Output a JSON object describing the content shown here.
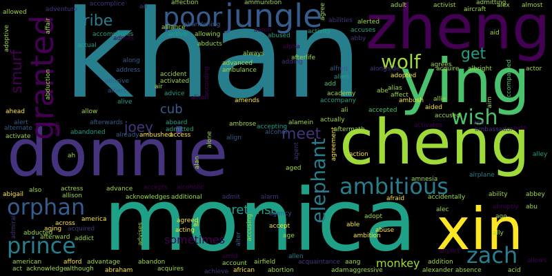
{
  "palette": {
    "background": "#000000",
    "purple_dark": "#440154",
    "purple": "#46337e",
    "indigo": "#365c8d",
    "blue": "#277f8e",
    "teal": "#1fa187",
    "green": "#4ac16d",
    "lime": "#a0da39",
    "yellow": "#fde725"
  },
  "words": [
    {
      "text": "khan"
    },
    {
      "text": "monica"
    },
    {
      "text": "donnie"
    },
    {
      "text": "zheng"
    },
    {
      "text": "cheng"
    },
    {
      "text": "ying"
    },
    {
      "text": "xin"
    },
    {
      "text": "jungle"
    },
    {
      "text": "poor"
    },
    {
      "text": "granted"
    },
    {
      "text": "wolf"
    },
    {
      "text": "get"
    },
    {
      "text": "tribe"
    },
    {
      "text": "wish"
    },
    {
      "text": "ambitious"
    },
    {
      "text": "orphan"
    },
    {
      "text": "prince"
    },
    {
      "text": "zach"
    },
    {
      "text": "elephant"
    },
    {
      "text": "meet"
    },
    {
      "text": "smurf"
    },
    {
      "text": "joey"
    },
    {
      "text": "cub"
    },
    {
      "text": "pretense"
    },
    {
      "text": "monkey"
    },
    {
      "text": "sometimes"
    },
    {
      "text": "accident"
    },
    {
      "text": "action"
    },
    {
      "text": "adopted"
    },
    {
      "text": "allen"
    },
    {
      "text": "aged"
    },
    {
      "text": "amends"
    },
    {
      "text": "ambush"
    },
    {
      "text": "actor"
    },
    {
      "text": "allowing"
    },
    {
      "text": "affection"
    },
    {
      "text": "alliance"
    },
    {
      "text": "abducts"
    },
    {
      "text": "ammunition"
    },
    {
      "text": "adopt"
    },
    {
      "text": "activist"
    },
    {
      "text": "adult"
    },
    {
      "text": "alerted"
    },
    {
      "text": "accuses"
    },
    {
      "text": "activity"
    },
    {
      "text": "afterlife"
    },
    {
      "text": "always"
    },
    {
      "text": "abused"
    },
    {
      "text": "abandoning"
    },
    {
      "text": "active"
    },
    {
      "text": "advanced"
    },
    {
      "text": "ambulance"
    },
    {
      "text": "activated"
    },
    {
      "text": "air"
    },
    {
      "text": "advice"
    },
    {
      "text": "along"
    },
    {
      "text": "address"
    },
    {
      "text": "abusive"
    },
    {
      "text": "albert"
    },
    {
      "text": "alive"
    },
    {
      "text": "allow"
    },
    {
      "text": "ahead"
    },
    {
      "text": "alert"
    },
    {
      "text": "alternate"
    },
    {
      "text": "activate"
    },
    {
      "text": "abandoned"
    },
    {
      "text": "afterwards"
    },
    {
      "text": "already"
    },
    {
      "text": "aboard"
    },
    {
      "text": "admitted"
    },
    {
      "text": "ambushed"
    },
    {
      "text": "access"
    },
    {
      "text": "ambrose"
    },
    {
      "text": "alcohol"
    },
    {
      "text": "accepting"
    },
    {
      "text": "alamein"
    },
    {
      "text": "actually"
    },
    {
      "text": "aftermath"
    },
    {
      "text": "ali"
    },
    {
      "text": "accepted"
    },
    {
      "text": "academy"
    },
    {
      "text": "accompany"
    },
    {
      "text": "add"
    },
    {
      "text": "alien"
    },
    {
      "text": "alfred"
    },
    {
      "text": "adding"
    },
    {
      "text": "alias"
    },
    {
      "text": "affect"
    },
    {
      "text": "abe"
    },
    {
      "text": "allie"
    },
    {
      "text": "aided"
    },
    {
      "text": "accused"
    },
    {
      "text": "activates"
    },
    {
      "text": "ace"
    },
    {
      "text": "aide"
    },
    {
      "text": "albright"
    },
    {
      "text": "agrees"
    },
    {
      "text": "acquire"
    },
    {
      "text": "alongside"
    },
    {
      "text": "abby"
    },
    {
      "text": "accompanied"
    },
    {
      "text": "aim"
    },
    {
      "text": "aid"
    },
    {
      "text": "aircraft"
    },
    {
      "text": "almost"
    },
    {
      "text": "alex"
    },
    {
      "text": "admitting"
    },
    {
      "text": "agree"
    },
    {
      "text": "abilities"
    },
    {
      "text": "accomplice"
    },
    {
      "text": "ad"
    },
    {
      "text": "adventure"
    },
    {
      "text": "allowed"
    },
    {
      "text": "adoptive"
    },
    {
      "text": "affair"
    },
    {
      "text": "abduction"
    },
    {
      "text": "actual"
    },
    {
      "text": "accompanies"
    },
    {
      "text": "admits"
    },
    {
      "text": "aaron"
    },
    {
      "text": "alpha"
    },
    {
      "text": "align"
    },
    {
      "text": "alone"
    },
    {
      "text": "alan"
    },
    {
      "text": "ah"
    },
    {
      "text": "agent"
    },
    {
      "text": "agreement"
    },
    {
      "text": "amnesia"
    },
    {
      "text": "airplane"
    },
    {
      "text": "ability"
    },
    {
      "text": "abbey"
    },
    {
      "text": "alley"
    },
    {
      "text": "abu"
    },
    {
      "text": "abruptly"
    },
    {
      "text": "ago"
    },
    {
      "text": "ally"
    },
    {
      "text": "accidentally"
    },
    {
      "text": "alec"
    },
    {
      "text": "afraid"
    },
    {
      "text": "abuse"
    },
    {
      "text": "ambition"
    },
    {
      "text": "able"
    },
    {
      "text": "accept"
    },
    {
      "text": "age"
    },
    {
      "text": "agency"
    },
    {
      "text": "accusing"
    },
    {
      "text": "alter"
    },
    {
      "text": "admit"
    },
    {
      "text": "alarm"
    },
    {
      "text": "aging"
    },
    {
      "text": "abducted"
    },
    {
      "text": "afterward"
    },
    {
      "text": "addict"
    },
    {
      "text": "across"
    },
    {
      "text": "america"
    },
    {
      "text": "acquired"
    },
    {
      "text": "agreed"
    },
    {
      "text": "acting"
    },
    {
      "text": "al"
    },
    {
      "text": "advises"
    },
    {
      "text": "alcoholic"
    },
    {
      "text": "accepts"
    },
    {
      "text": "advance"
    },
    {
      "text": "actress"
    },
    {
      "text": "allison"
    },
    {
      "text": "acknowledges"
    },
    {
      "text": "additional"
    },
    {
      "text": "also"
    },
    {
      "text": "abigail"
    },
    {
      "text": "admiral"
    },
    {
      "text": "american"
    },
    {
      "text": "afford"
    },
    {
      "text": "advantage"
    },
    {
      "text": "acknowledge"
    },
    {
      "text": "although"
    },
    {
      "text": "act"
    },
    {
      "text": "abraham"
    },
    {
      "text": "abandon"
    },
    {
      "text": "acquires"
    },
    {
      "text": "achieve"
    },
    {
      "text": "account"
    },
    {
      "text": "african"
    },
    {
      "text": "airfield"
    },
    {
      "text": "abortion"
    },
    {
      "text": "acquaintance"
    },
    {
      "text": "adam"
    },
    {
      "text": "aang"
    },
    {
      "text": "aggressive"
    },
    {
      "text": "addition"
    },
    {
      "text": "alexander"
    },
    {
      "text": "absence"
    },
    {
      "text": "acid"
    },
    {
      "text": "allows"
    },
    {
      "text": "airport"
    },
    {
      "text": "amid"
    },
    {
      "text": "altar"
    },
    {
      "text": "ambassador"
    },
    {
      "text": "alison"
    },
    {
      "text": "according"
    }
  ]
}
